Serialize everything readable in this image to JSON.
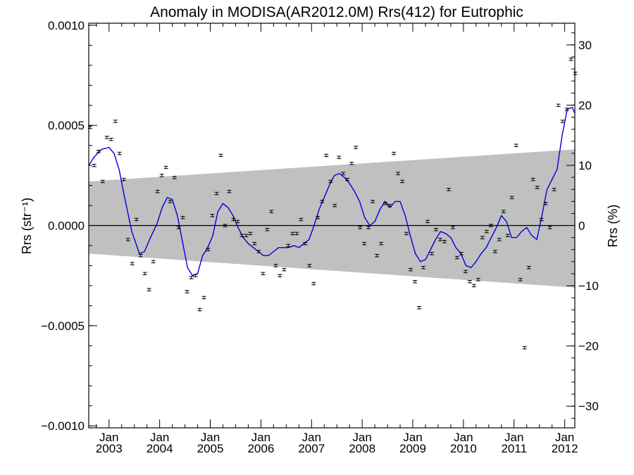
{
  "chart_data": {
    "type": "scatter",
    "title": "Anomaly in MODISA(AR2012.0M) Rrs(412) for Eutrophic",
    "xlabel": "",
    "ylabel_left": "Rrs (str⁻¹)",
    "ylabel_right": "Rrs (%)",
    "xlim": [
      2002.6,
      2012.2
    ],
    "ylim_left": [
      -0.00101,
      0.00101
    ],
    "ylim_right": [
      -33.6,
      33.6
    ],
    "x_ticks": [
      {
        "value": 2003.0,
        "label": [
          "Jan",
          "2003"
        ]
      },
      {
        "value": 2004.0,
        "label": [
          "Jan",
          "2004"
        ]
      },
      {
        "value": 2005.0,
        "label": [
          "Jan",
          "2005"
        ]
      },
      {
        "value": 2006.0,
        "label": [
          "Jan",
          "2006"
        ]
      },
      {
        "value": 2007.0,
        "label": [
          "Jan",
          "2007"
        ]
      },
      {
        "value": 2008.0,
        "label": [
          "Jan",
          "2008"
        ]
      },
      {
        "value": 2009.0,
        "label": [
          "Jan",
          "2009"
        ]
      },
      {
        "value": 2010.0,
        "label": [
          "Jan",
          "2010"
        ]
      },
      {
        "value": 2011.0,
        "label": [
          "Jan",
          "2011"
        ]
      },
      {
        "value": 2012.0,
        "label": [
          "Jan",
          "2012"
        ]
      }
    ],
    "y_ticks_left": [
      {
        "value": 0.001,
        "label": "0.0010"
      },
      {
        "value": 0.0005,
        "label": "0.0005"
      },
      {
        "value": 0.0,
        "label": "0.0000"
      },
      {
        "value": -0.0005,
        "label": "−0.0005"
      },
      {
        "value": -0.001,
        "label": "−0.0010"
      }
    ],
    "y_ticks_right": [
      {
        "value": 30,
        "label": "30"
      },
      {
        "value": 20,
        "label": "20"
      },
      {
        "value": 10,
        "label": "10"
      },
      {
        "value": 0,
        "label": "0"
      },
      {
        "value": -10,
        "label": "−10"
      },
      {
        "value": -20,
        "label": "−20"
      },
      {
        "value": -30,
        "label": "−30"
      }
    ],
    "band": {
      "x": [
        2002.6,
        2012.2
      ],
      "upper": [
        0.00022,
        0.00038
      ],
      "lower": [
        -0.00014,
        -0.00031
      ],
      "color": "#c0c0c0"
    },
    "zero_line": 0.0,
    "points": [
      {
        "x": 2002.625,
        "y": 0.00049
      },
      {
        "x": 2002.708,
        "y": 0.0003
      },
      {
        "x": 2002.792,
        "y": 0.00037
      },
      {
        "x": 2002.875,
        "y": 0.00022
      },
      {
        "x": 2002.958,
        "y": 0.00044
      },
      {
        "x": 2003.042,
        "y": 0.00043
      },
      {
        "x": 2003.125,
        "y": 0.00052
      },
      {
        "x": 2003.208,
        "y": 0.00036
      },
      {
        "x": 2003.292,
        "y": 0.00023
      },
      {
        "x": 2003.375,
        "y": -7e-05
      },
      {
        "x": 2003.458,
        "y": -0.00019
      },
      {
        "x": 2003.542,
        "y": 3e-05
      },
      {
        "x": 2003.625,
        "y": -0.00015
      },
      {
        "x": 2003.708,
        "y": -0.00024
      },
      {
        "x": 2003.792,
        "y": -0.00032
      },
      {
        "x": 2003.875,
        "y": -0.00018
      },
      {
        "x": 2003.958,
        "y": 0.00017
      },
      {
        "x": 2004.042,
        "y": 0.00025
      },
      {
        "x": 2004.125,
        "y": 0.00029
      },
      {
        "x": 2004.208,
        "y": 0.00012
      },
      {
        "x": 2004.292,
        "y": 0.00024
      },
      {
        "x": 2004.375,
        "y": -1e-05
      },
      {
        "x": 2004.458,
        "y": 4e-05
      },
      {
        "x": 2004.542,
        "y": -0.00033
      },
      {
        "x": 2004.625,
        "y": -0.00026
      },
      {
        "x": 2004.708,
        "y": -0.00025
      },
      {
        "x": 2004.792,
        "y": -0.00042
      },
      {
        "x": 2004.875,
        "y": -0.00036
      },
      {
        "x": 2004.958,
        "y": -0.00012
      },
      {
        "x": 2005.042,
        "y": 5e-05
      },
      {
        "x": 2005.125,
        "y": 0.00016
      },
      {
        "x": 2005.208,
        "y": 0.00035
      },
      {
        "x": 2005.292,
        "y": 0.0
      },
      {
        "x": 2005.375,
        "y": 0.00017
      },
      {
        "x": 2005.458,
        "y": 3e-05
      },
      {
        "x": 2005.542,
        "y": 2e-05
      },
      {
        "x": 2005.625,
        "y": -5e-05
      },
      {
        "x": 2005.708,
        "y": -5e-05
      },
      {
        "x": 2005.792,
        "y": -4e-05
      },
      {
        "x": 2005.875,
        "y": -9e-05
      },
      {
        "x": 2005.958,
        "y": -0.00013
      },
      {
        "x": 2006.042,
        "y": -0.00024
      },
      {
        "x": 2006.125,
        "y": -2e-05
      },
      {
        "x": 2006.208,
        "y": 7e-05
      },
      {
        "x": 2006.292,
        "y": -0.0002
      },
      {
        "x": 2006.375,
        "y": -0.00025
      },
      {
        "x": 2006.458,
        "y": -0.00022
      },
      {
        "x": 2006.542,
        "y": -0.0001
      },
      {
        "x": 2006.625,
        "y": -4e-05
      },
      {
        "x": 2006.708,
        "y": -4e-05
      },
      {
        "x": 2006.792,
        "y": 3e-05
      },
      {
        "x": 2006.875,
        "y": -9e-05
      },
      {
        "x": 2006.958,
        "y": -0.0002
      },
      {
        "x": 2007.042,
        "y": -0.00029
      },
      {
        "x": 2007.125,
        "y": 4e-05
      },
      {
        "x": 2007.208,
        "y": 0.00012
      },
      {
        "x": 2007.292,
        "y": 0.00035
      },
      {
        "x": 2007.375,
        "y": 0.00022
      },
      {
        "x": 2007.458,
        "y": 0.0001
      },
      {
        "x": 2007.542,
        "y": 0.00034
      },
      {
        "x": 2007.625,
        "y": 0.00026
      },
      {
        "x": 2007.708,
        "y": 0.00023
      },
      {
        "x": 2007.792,
        "y": 0.00031
      },
      {
        "x": 2007.875,
        "y": 0.00039
      },
      {
        "x": 2007.958,
        "y": -1e-05
      },
      {
        "x": 2008.042,
        "y": -9e-05
      },
      {
        "x": 2008.125,
        "y": -1e-05
      },
      {
        "x": 2008.208,
        "y": 0.00012
      },
      {
        "x": 2008.292,
        "y": -0.00015
      },
      {
        "x": 2008.375,
        "y": -9e-05
      },
      {
        "x": 2008.458,
        "y": 0.00011
      },
      {
        "x": 2008.542,
        "y": 0.0001
      },
      {
        "x": 2008.625,
        "y": 0.00036
      },
      {
        "x": 2008.708,
        "y": 0.00026
      },
      {
        "x": 2008.792,
        "y": 0.00022
      },
      {
        "x": 2008.875,
        "y": -4e-05
      },
      {
        "x": 2008.958,
        "y": -0.00022
      },
      {
        "x": 2009.042,
        "y": -0.00028
      },
      {
        "x": 2009.125,
        "y": -0.00041
      },
      {
        "x": 2009.208,
        "y": -0.00021
      },
      {
        "x": 2009.292,
        "y": 2e-05
      },
      {
        "x": 2009.375,
        "y": -0.00014
      },
      {
        "x": 2009.458,
        "y": -2e-05
      },
      {
        "x": 2009.542,
        "y": -7e-05
      },
      {
        "x": 2009.625,
        "y": -8e-05
      },
      {
        "x": 2009.708,
        "y": 0.00018
      },
      {
        "x": 2009.792,
        "y": -1e-05
      },
      {
        "x": 2009.875,
        "y": -0.00016
      },
      {
        "x": 2009.958,
        "y": -0.00014
      },
      {
        "x": 2010.042,
        "y": -0.00023
      },
      {
        "x": 2010.125,
        "y": -0.00028
      },
      {
        "x": 2010.208,
        "y": -0.0003
      },
      {
        "x": 2010.292,
        "y": -0.00027
      },
      {
        "x": 2010.375,
        "y": -6e-05
      },
      {
        "x": 2010.458,
        "y": -3e-05
      },
      {
        "x": 2010.542,
        "y": 0.0
      },
      {
        "x": 2010.625,
        "y": -0.00013
      },
      {
        "x": 2010.708,
        "y": -7e-05
      },
      {
        "x": 2010.792,
        "y": 7e-05
      },
      {
        "x": 2010.875,
        "y": -5e-05
      },
      {
        "x": 2010.958,
        "y": 0.00014
      },
      {
        "x": 2011.042,
        "y": 0.0004
      },
      {
        "x": 2011.125,
        "y": -0.00027
      },
      {
        "x": 2011.208,
        "y": -0.00061
      },
      {
        "x": 2011.292,
        "y": -0.00021
      },
      {
        "x": 2011.375,
        "y": 0.00023
      },
      {
        "x": 2011.458,
        "y": 0.00019
      },
      {
        "x": 2011.542,
        "y": 3e-05
      },
      {
        "x": 2011.625,
        "y": 0.00011
      },
      {
        "x": 2011.708,
        "y": -1e-05
      },
      {
        "x": 2011.792,
        "y": 0.00018
      },
      {
        "x": 2011.875,
        "y": 0.0006
      },
      {
        "x": 2011.958,
        "y": 0.00052
      },
      {
        "x": 2012.042,
        "y": 0.00058
      },
      {
        "x": 2012.125,
        "y": 0.00083
      },
      {
        "x": 2012.208,
        "y": 0.00076
      }
    ],
    "errorbar_halfwidth": 6e-06,
    "trend_line": {
      "color": "#0000dd",
      "x": [
        2002.6,
        2002.7,
        2002.85,
        2003.0,
        2003.1,
        2003.2,
        2003.3,
        2003.45,
        2003.6,
        2003.7,
        2003.8,
        2003.95,
        2004.05,
        2004.15,
        2004.25,
        2004.35,
        2004.45,
        2004.55,
        2004.65,
        2004.75,
        2004.85,
        2004.95,
        2005.05,
        2005.15,
        2005.25,
        2005.35,
        2005.45,
        2005.55,
        2005.65,
        2005.75,
        2005.85,
        2005.95,
        2006.05,
        2006.15,
        2006.25,
        2006.35,
        2006.45,
        2006.55,
        2006.65,
        2006.75,
        2006.85,
        2006.95,
        2007.05,
        2007.15,
        2007.25,
        2007.35,
        2007.45,
        2007.55,
        2007.65,
        2007.75,
        2007.85,
        2007.95,
        2008.05,
        2008.15,
        2008.25,
        2008.35,
        2008.45,
        2008.55,
        2008.65,
        2008.75,
        2008.85,
        2008.95,
        2009.05,
        2009.15,
        2009.25,
        2009.35,
        2009.45,
        2009.55,
        2009.65,
        2009.75,
        2009.85,
        2009.95,
        2010.05,
        2010.15,
        2010.25,
        2010.35,
        2010.45,
        2010.55,
        2010.65,
        2010.75,
        2010.85,
        2010.95,
        2011.05,
        2011.15,
        2011.25,
        2011.35,
        2011.45,
        2011.55,
        2011.65,
        2011.75,
        2011.85,
        2011.95,
        2012.05,
        2012.15,
        2012.2
      ],
      "y": [
        0.0003,
        0.00034,
        0.00038,
        0.00039,
        0.00036,
        0.00028,
        0.00015,
        -3e-05,
        -0.00014,
        -0.00013,
        -7e-05,
        1e-05,
        9e-05,
        0.00014,
        0.00013,
        5e-05,
        -8e-05,
        -0.00021,
        -0.00025,
        -0.00024,
        -0.00015,
        -0.00011,
        -5e-05,
        7e-05,
        0.00011,
        9e-05,
        5e-05,
        -1e-05,
        -6e-05,
        -9e-05,
        -0.00011,
        -0.00013,
        -0.00015,
        -0.00015,
        -0.00013,
        -0.00011,
        -0.00011,
        -0.00011,
        -0.0001,
        -0.00011,
        -9e-05,
        -7e-05,
        0.0,
        8e-05,
        0.00014,
        0.0002,
        0.00025,
        0.00026,
        0.00024,
        0.00021,
        0.00017,
        0.00012,
        4e-05,
        0.0,
        2e-05,
        8e-05,
        0.00012,
        9e-05,
        0.00012,
        0.00012,
        5e-05,
        -5e-05,
        -0.00014,
        -0.00018,
        -0.00017,
        -0.00012,
        -7e-05,
        -3e-05,
        -4e-05,
        -6e-05,
        -0.00011,
        -0.00014,
        -0.0002,
        -0.00021,
        -0.00018,
        -0.00014,
        -0.00011,
        -6e-05,
        -1e-05,
        5e-05,
        2e-05,
        -6e-05,
        -6e-05,
        -3e-05,
        -1e-05,
        -5e-05,
        -7e-05,
        5e-05,
        0.00018,
        0.00023,
        0.00028,
        0.00045,
        0.00058,
        0.00059,
        0.00056
      ]
    }
  }
}
